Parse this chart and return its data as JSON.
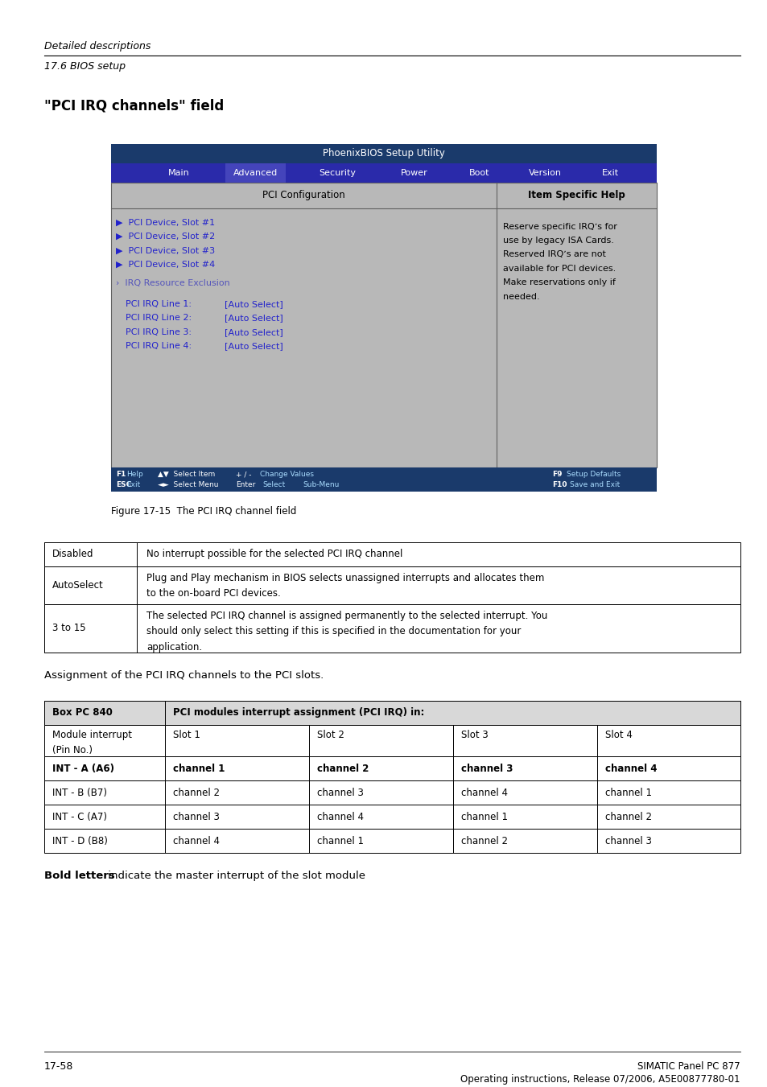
{
  "page_width": 9.54,
  "page_height": 13.51,
  "bg_color": "#ffffff",
  "header_italic_line1": "Detailed descriptions",
  "header_line2": "17.6 BIOS setup",
  "section_title": "\"PCI IRQ channels\" field",
  "bios_title": "PhoenixBIOS Setup Utility",
  "bios_title_bg": "#1a3a6b",
  "menu_items": [
    "Main",
    "Advanced",
    "Security",
    "Power",
    "Boot",
    "Version",
    "Exit"
  ],
  "menu_bg": "#2a2aaa",
  "menu_selected": "Advanced",
  "menu_selected_bg": "#4444bb",
  "bios_body_bg": "#b8b8b8",
  "bios_left_title": "PCI Configuration",
  "bios_right_title": "Item Specific Help",
  "bios_slots": [
    "▶  PCI Device, Slot #1",
    "▶  PCI Device, Slot #2",
    "▶  PCI Device, Slot #3",
    "▶  PCI Device, Slot #4"
  ],
  "bios_exclusion": "›  IRQ Resource Exclusion",
  "bios_irq_lines": [
    [
      "PCI IRQ Line 1:",
      "[Auto Select]"
    ],
    [
      "PCI IRQ Line 2:",
      "[Auto Select]"
    ],
    [
      "PCI IRQ Line 3:",
      "[Auto Select]"
    ],
    [
      "PCI IRQ Line 4:",
      "[Auto Select]"
    ]
  ],
  "bios_help_text": "Reserve specific IRQʼs for\nuse by legacy ISA Cards.\nReserved IRQʼs are not\navailable for PCI devices.\nMake reservations only if\nneeded.",
  "figure_caption": "Figure 17-15  The PCI IRQ channel field",
  "table1_rows": [
    [
      "Disabled",
      "No interrupt possible for the selected PCI IRQ channel"
    ],
    [
      "AutoSelect",
      "Plug and Play mechanism in BIOS selects unassigned interrupts and allocates them\nto the on-board PCI devices."
    ],
    [
      "3 to 15",
      "The selected PCI IRQ channel is assigned permanently to the selected interrupt. You\nshould only select this setting if this is specified in the documentation for your\napplication."
    ]
  ],
  "assign_text": "Assignment of the PCI IRQ channels to the PCI slots.",
  "table2_header_row1": [
    "Box PC 840",
    "PCI modules interrupt assignment (PCI IRQ) in:"
  ],
  "table2_header_row2": [
    "Module interrupt\n(Pin No.)",
    "Slot 1",
    "Slot 2",
    "Slot 3",
    "Slot 4"
  ],
  "table2_rows": [
    [
      "INT - A (A6)",
      "channel 1",
      "channel 2",
      "channel 3",
      "channel 4"
    ],
    [
      "INT - B (B7)",
      "channel 2",
      "channel 3",
      "channel 4",
      "channel 1"
    ],
    [
      "INT - C (A7)",
      "channel 3",
      "channel 4",
      "channel 1",
      "channel 2"
    ],
    [
      "INT - D (B8)",
      "channel 4",
      "channel 1",
      "channel 2",
      "channel 3"
    ]
  ],
  "bold_note": "Bold letters",
  "bold_note_rest": " indicate the master interrupt of the slot module",
  "footer_left": "17-58",
  "footer_right_line1": "SIMATIC Panel PC 877",
  "footer_right_line2": "Operating instructions, Release 07/2006, A5E00877780-01"
}
